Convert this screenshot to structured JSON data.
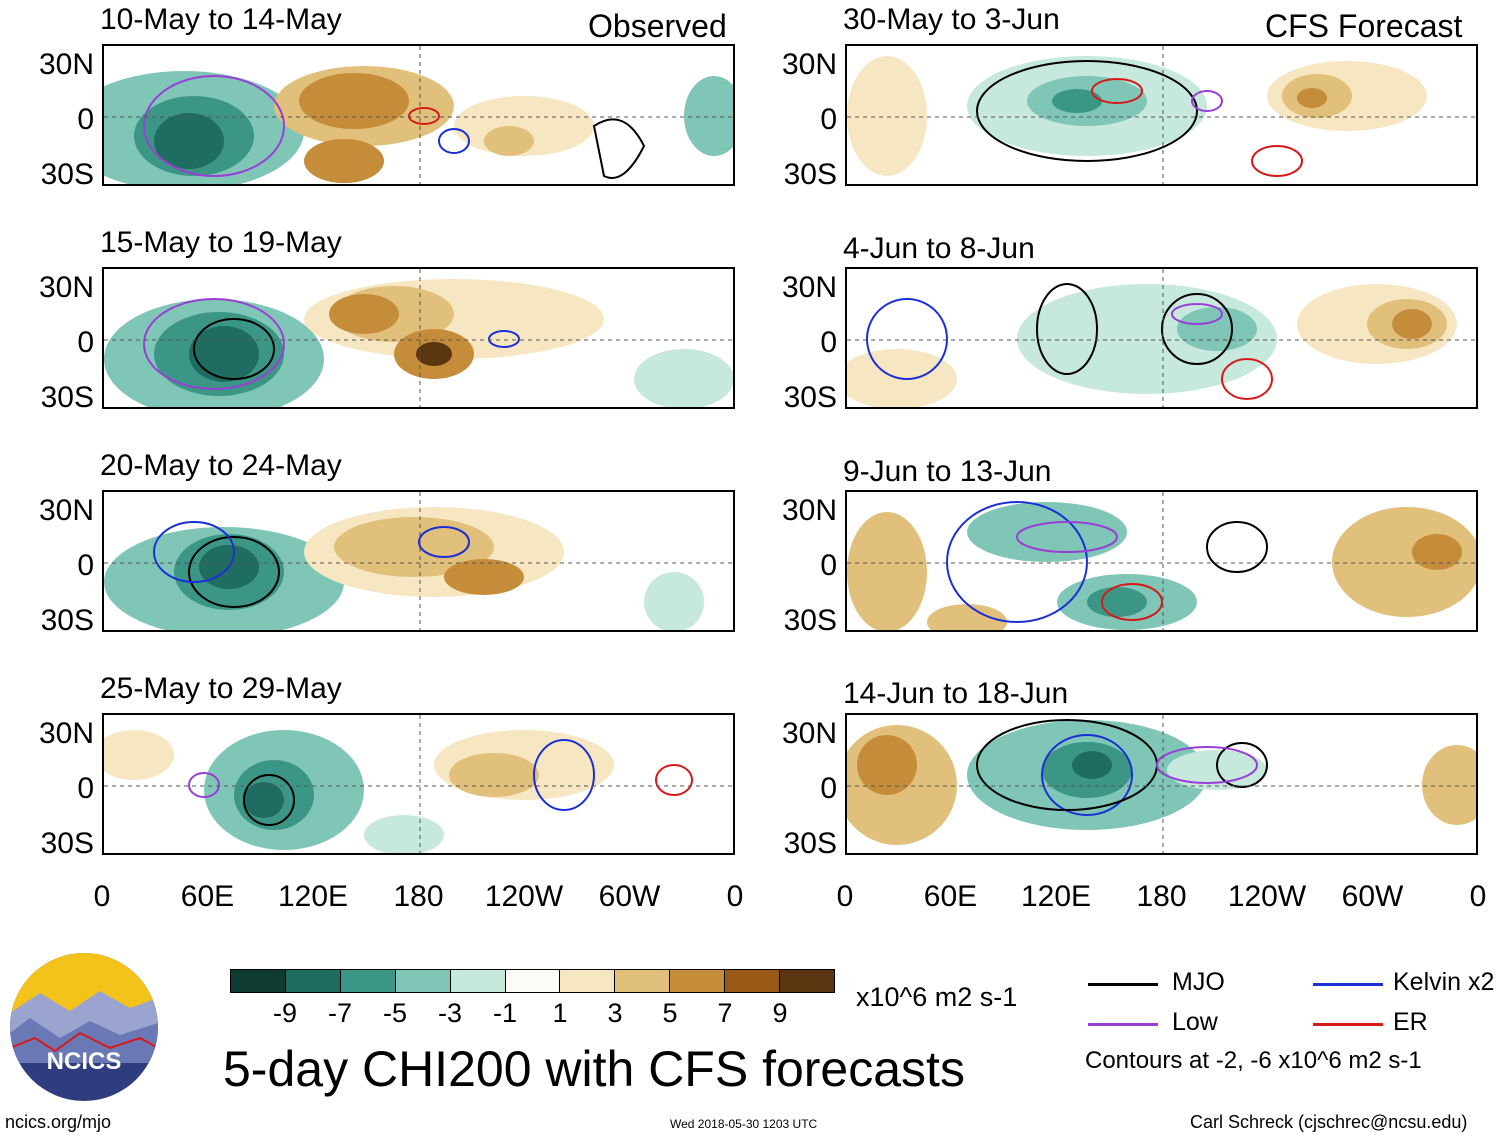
{
  "headers": {
    "observed": "Observed",
    "forecast": "CFS Forecast"
  },
  "panels_observed": [
    {
      "title": "10-May to 14-May"
    },
    {
      "title": "15-May to 19-May"
    },
    {
      "title": "20-May to 24-May"
    },
    {
      "title": "25-May to 29-May"
    }
  ],
  "panels_forecast": [
    {
      "title": "30-May to 3-Jun"
    },
    {
      "title": "4-Jun to 8-Jun"
    },
    {
      "title": "9-Jun to 13-Jun"
    },
    {
      "title": "14-Jun to 18-Jun"
    }
  ],
  "lat_labels": [
    "30N",
    "0",
    "30S"
  ],
  "lon_labels": [
    "0",
    "60E",
    "120E",
    "180",
    "120W",
    "60W",
    "0"
  ],
  "colorbar": {
    "colors": [
      "#0f3b33",
      "#1f6d60",
      "#3b9686",
      "#7fc6b6",
      "#c6e8dd",
      "#fbfbf7",
      "#f6e6c1",
      "#e1c07c",
      "#c58d3a",
      "#9a5a17",
      "#5a3510"
    ],
    "ticks": [
      "-9",
      "-7",
      "-5",
      "-3",
      "-1",
      "1",
      "3",
      "5",
      "7",
      "9"
    ],
    "units": "x10^6 m2 s-1"
  },
  "legend": {
    "items": [
      {
        "label": "MJO",
        "color": "#000000"
      },
      {
        "label": "Kelvin x2",
        "color": "#1a2fd6"
      },
      {
        "label": "Low",
        "color": "#9a3fd6"
      },
      {
        "label": "ER",
        "color": "#d61a1a"
      }
    ],
    "contours": "Contours at -2, -6 x10^6 m2 s-1"
  },
  "logo_text": "NCICS",
  "main_title": "5-day CHI200 with CFS forecasts",
  "footer": {
    "left": "ncics.org/mjo",
    "center": "Wed 2018-05-30 1203 UTC",
    "right": "Carl Schreck (cjschrec@ncsu.edu)"
  }
}
